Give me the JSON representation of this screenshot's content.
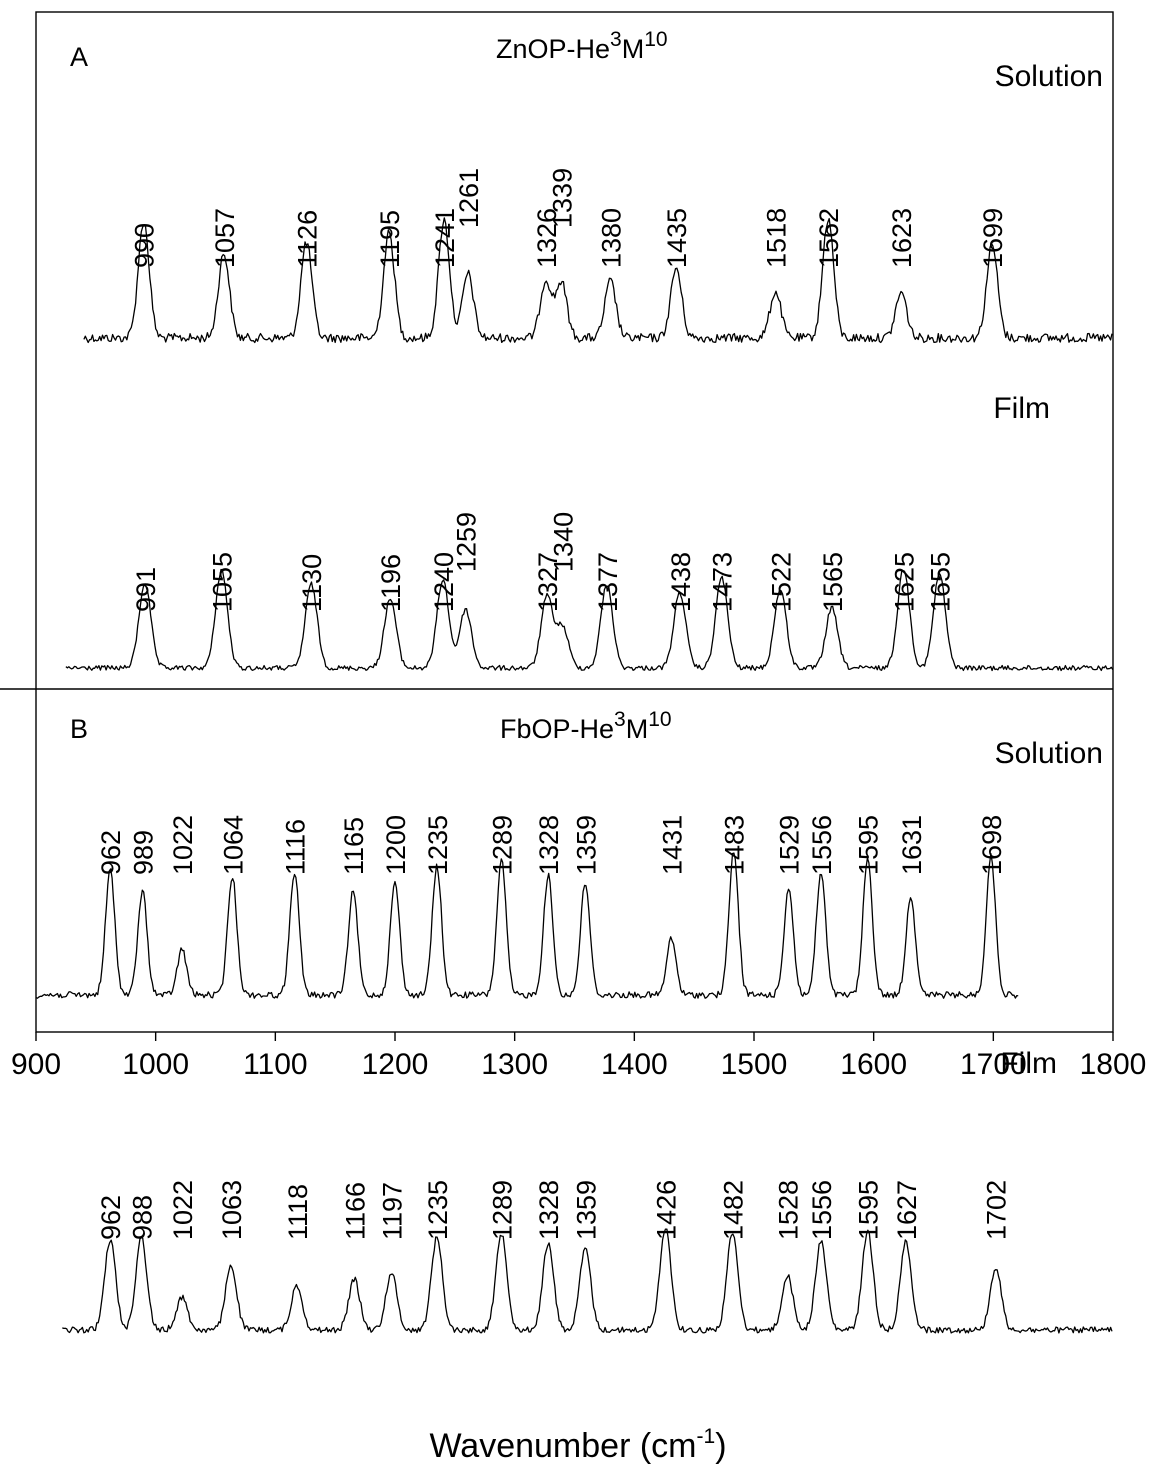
{
  "chart_data": {
    "type": "line",
    "xlabel": {
      "main": "Wavenumber (cm",
      "sup": "-1",
      "close": ")"
    },
    "xlim": [
      900,
      1800
    ],
    "x_ticks": [
      900,
      1000,
      1100,
      1200,
      1300,
      1400,
      1500,
      1600,
      1700,
      1800
    ],
    "y_axis": "unlabeled, no ticks",
    "grid": false,
    "panels": [
      {
        "letter": "A",
        "title": {
          "base": "ZnOP-He",
          "sup1": "3",
          "mid": "M",
          "sup2": "10"
        },
        "spectra": [
          {
            "name": "Solution",
            "peaks": [
              990,
              1057,
              1126,
              1195,
              1241,
              1261,
              1326,
              1339,
              1380,
              1435,
              1518,
              1562,
              1623,
              1699
            ],
            "x_range": [
              940,
              1800
            ]
          },
          {
            "name": "Film",
            "peaks": [
              991,
              1055,
              1130,
              1196,
              1240,
              1259,
              1327,
              1340,
              1377,
              1438,
              1473,
              1522,
              1565,
              1625,
              1655
            ],
            "x_range": [
              925,
              1800
            ]
          }
        ]
      },
      {
        "letter": "B",
        "title": {
          "base": "FbOP-He",
          "sup1": "3",
          "mid": "M",
          "sup2": "10"
        },
        "spectra": [
          {
            "name": "Solution",
            "peaks": [
              962,
              989,
              1022,
              1064,
              1116,
              1165,
              1200,
              1235,
              1289,
              1328,
              1359,
              1431,
              1483,
              1529,
              1556,
              1595,
              1631,
              1698
            ],
            "x_range": [
              900,
              1722
            ]
          },
          {
            "name": "Film",
            "peaks": [
              962,
              988,
              1022,
              1063,
              1118,
              1166,
              1197,
              1235,
              1289,
              1328,
              1359,
              1426,
              1482,
              1528,
              1556,
              1595,
              1627,
              1702
            ],
            "x_range": [
              922,
              1800
            ]
          }
        ]
      }
    ]
  }
}
